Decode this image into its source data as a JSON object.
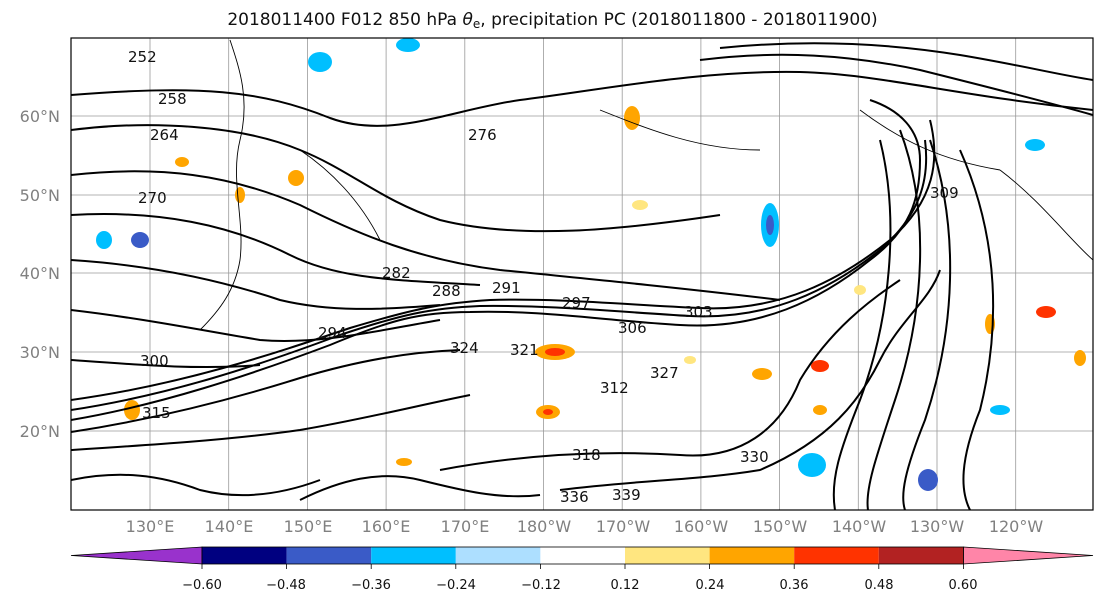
{
  "title": {
    "prefix": "2018011400 F012 850 hPa",
    "symbol": "θ",
    "symbol_sub": "e",
    "suffix": ", precipitation PC (2018011800 - 2018011900)"
  },
  "map": {
    "lat_labels": [
      "60°N",
      "50°N",
      "40°N",
      "30°N",
      "20°N"
    ],
    "lon_labels": [
      "130°E",
      "140°E",
      "150°E",
      "160°E",
      "170°E",
      "180°W",
      "170°W",
      "160°W",
      "150°W",
      "140°W",
      "130°W",
      "120°W"
    ],
    "contour_labels": [
      "252",
      "258",
      "264",
      "270",
      "276",
      "282",
      "288",
      "291",
      "294",
      "297",
      "300",
      "303",
      "306",
      "309",
      "312",
      "315",
      "318",
      "321",
      "324",
      "327",
      "330",
      "336",
      "339"
    ]
  },
  "colorbar": {
    "ticks": [
      "−0.60",
      "−0.48",
      "−0.36",
      "−0.24",
      "−0.12",
      "0.12",
      "0.24",
      "0.36",
      "0.48",
      "0.60"
    ],
    "colors": [
      "#9932CC",
      "#000080",
      "#3A5BC7",
      "#00BFFF",
      "#ADDFFF",
      "#FFFFFF",
      "#FFE680",
      "#FFA500",
      "#FF3300",
      "#B22222",
      "#FF85A8"
    ]
  }
}
